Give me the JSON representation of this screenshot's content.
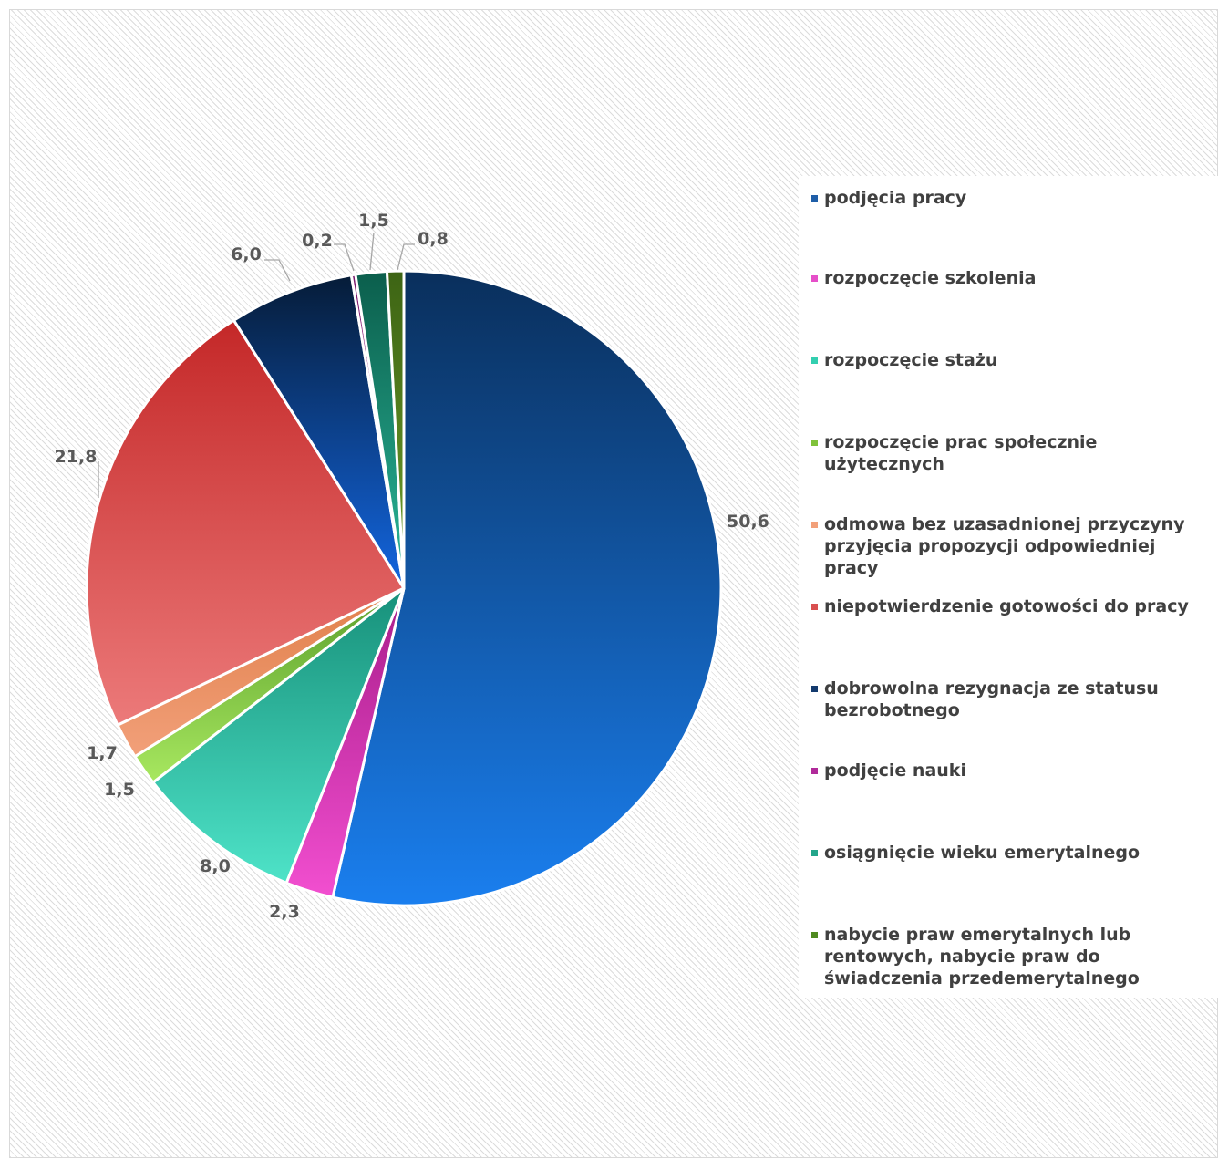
{
  "chart_data": {
    "type": "pie",
    "title": "",
    "categories": [
      "podjęcia pracy",
      "rozpoczęcie szkolenia",
      "rozpoczęcie stażu",
      "rozpoczęcie prac społecznie użytecznych",
      "odmowa bez uzasadnionej przyczyny przyjęcia propozycji odpowiedniej pracy",
      "niepotwierdzenie gotowości do pracy",
      "dobrowolna rezygnacja ze statusu bezrobotnego",
      "podjęcie nauki",
      "osiągnięcie wieku emerytalnego",
      "nabycie praw emerytalnych lub rentowych, nabycie praw do świadczenia przedemerytalnego"
    ],
    "values": [
      50.6,
      2.3,
      8.0,
      1.5,
      1.7,
      21.8,
      6.0,
      0.2,
      1.5,
      0.8
    ],
    "value_labels": [
      "50,6",
      "2,3",
      "8,0",
      "1,5",
      "1,7",
      "21,8",
      "6,0",
      "0,2",
      "1,5",
      "0,8"
    ],
    "colors": [
      [
        "#1a7fef",
        "#0a2f5c"
      ],
      [
        "#f24fd0",
        "#a81c8a"
      ],
      [
        "#4ee3c8",
        "#17907a"
      ],
      [
        "#a8e860",
        "#5a9e2a"
      ],
      [
        "#f2a07a",
        "#e07f4a"
      ],
      [
        "#ec7a7a",
        "#c42828"
      ],
      [
        "#1366e0",
        "#061c38"
      ],
      [
        "#c43fb0",
        "#7a1a6c"
      ],
      [
        "#2bb89a",
        "#0b5e4c"
      ],
      [
        "#6f9e2a",
        "#3d6414"
      ]
    ],
    "legend_position": "right",
    "legend_colors": [
      "#1f5ea8",
      "#e64fc9",
      "#33cfb0",
      "#7fc23a",
      "#f2a07a",
      "#d94f4f",
      "#133a6e",
      "#b02a9a",
      "#23a58a",
      "#4f8a20"
    ],
    "legend": [
      "podjęcia pracy",
      "rozpoczęcie szkolenia",
      "rozpoczęcie stażu",
      "rozpoczęcie prac społecznie użytecznych",
      "odmowa bez uzasadnionej przyczyny przyjęcia propozycji odpowiedniej pracy",
      "niepotwierdzenie gotowości do pracy",
      "dobrowolna rezygnacja ze statusu bezrobotnego",
      "podjęcie nauki",
      "osiągnięcie wieku emerytalnego",
      "nabycie praw emerytalnych lub rentowych, nabycie praw do świadczenia przedemerytalnego"
    ]
  }
}
